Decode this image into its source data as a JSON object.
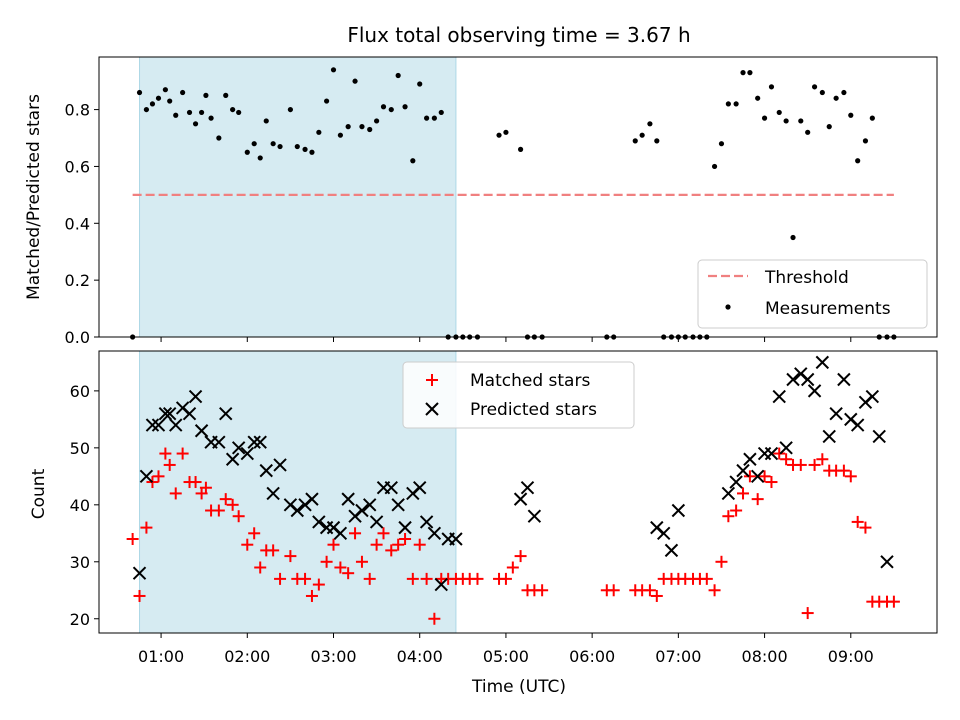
{
  "chart_data": {
    "type": "scatter",
    "title": "Flux total observing time = 3.67 h",
    "xlabel": "Time (UTC)",
    "x_tick_labels": [
      "01:00",
      "02:00",
      "03:00",
      "04:00",
      "05:00",
      "06:00",
      "07:00",
      "08:00",
      "09:00"
    ],
    "x_ticks": [
      1,
      2,
      3,
      4,
      5,
      6,
      7,
      8,
      9
    ],
    "xlim": [
      0.28,
      10.0
    ],
    "shaded_span": [
      0.75,
      4.42
    ],
    "colors": {
      "shade": "#add8e6",
      "threshold": "#f08080",
      "measurement": "#000000",
      "matched": "#ff0000",
      "predicted": "#000000"
    },
    "panels": [
      {
        "ylabel": "Matched/Predicted stars",
        "ylim": [
          0,
          0.985
        ],
        "y_ticks": [
          0.0,
          0.2,
          0.4,
          0.6,
          0.8
        ],
        "y_tick_labels": [
          "0.0",
          "0.2",
          "0.4",
          "0.6",
          "0.8"
        ],
        "legend_position": "lower-right",
        "series": [
          {
            "name": "Threshold",
            "style": "dashed-line",
            "x": [
              0.67,
              9.5
            ],
            "y": [
              0.5,
              0.5
            ]
          },
          {
            "name": "Measurements",
            "style": "dot",
            "x": [
              0.67,
              0.75,
              0.83,
              0.9,
              0.97,
              1.05,
              1.1,
              1.17,
              1.25,
              1.33,
              1.4,
              1.47,
              1.52,
              1.58,
              1.67,
              1.75,
              1.83,
              1.9,
              2.0,
              2.08,
              2.15,
              2.22,
              2.3,
              2.38,
              2.5,
              2.58,
              2.67,
              2.75,
              2.83,
              2.92,
              3.0,
              3.08,
              3.17,
              3.25,
              3.33,
              3.42,
              3.5,
              3.58,
              3.67,
              3.75,
              3.83,
              3.92,
              4.0,
              4.08,
              4.17,
              4.25,
              4.33,
              4.42,
              4.5,
              4.58,
              4.67,
              4.92,
              5.0,
              5.17,
              5.25,
              5.33,
              5.42,
              6.17,
              6.25,
              6.5,
              6.58,
              6.67,
              6.75,
              6.83,
              6.92,
              7.0,
              7.08,
              7.17,
              7.25,
              7.33,
              7.42,
              7.5,
              7.58,
              7.67,
              7.75,
              7.83,
              7.92,
              8.0,
              8.08,
              8.17,
              8.25,
              8.33,
              8.42,
              8.5,
              8.58,
              8.67,
              8.75,
              8.83,
              8.92,
              9.0,
              9.08,
              9.17,
              9.25,
              9.33,
              9.42,
              9.5
            ],
            "y": [
              0.0,
              0.86,
              0.8,
              0.82,
              0.84,
              0.87,
              0.83,
              0.78,
              0.86,
              0.79,
              0.75,
              0.79,
              0.85,
              0.77,
              0.7,
              0.85,
              0.8,
              0.79,
              0.65,
              0.68,
              0.63,
              0.76,
              0.68,
              0.67,
              0.8,
              0.67,
              0.66,
              0.65,
              0.72,
              0.83,
              0.94,
              0.71,
              0.74,
              0.9,
              0.74,
              0.73,
              0.76,
              0.81,
              0.8,
              0.92,
              0.81,
              0.62,
              0.89,
              0.77,
              0.77,
              0.79,
              0.0,
              0.0,
              0.0,
              0.0,
              0.0,
              0.71,
              0.72,
              0.66,
              0.0,
              0.0,
              0.0,
              0.0,
              0.0,
              0.69,
              0.71,
              0.75,
              0.69,
              0.0,
              0.0,
              0.0,
              0.0,
              0.0,
              0.0,
              0.0,
              0.6,
              0.68,
              0.82,
              0.82,
              0.93,
              0.93,
              0.84,
              0.77,
              0.88,
              0.79,
              0.76,
              0.35,
              0.76,
              0.72,
              0.88,
              0.86,
              0.74,
              0.84,
              0.86,
              0.78,
              0.62,
              0.69,
              0.77,
              0.0,
              0.0,
              0.0
            ]
          }
        ]
      },
      {
        "ylabel": "Count",
        "ylim": [
          17.5,
          67
        ],
        "y_ticks": [
          20,
          30,
          40,
          50,
          60
        ],
        "y_tick_labels": [
          "20",
          "30",
          "40",
          "50",
          "60"
        ],
        "legend_position": "top-center",
        "series": [
          {
            "name": "Matched stars",
            "style": "plus",
            "x": [
              0.67,
              0.75,
              0.83,
              0.9,
              0.97,
              1.05,
              1.1,
              1.17,
              1.25,
              1.33,
              1.4,
              1.47,
              1.52,
              1.58,
              1.67,
              1.75,
              1.83,
              1.9,
              2.0,
              2.08,
              2.15,
              2.22,
              2.3,
              2.38,
              2.5,
              2.58,
              2.67,
              2.75,
              2.83,
              2.92,
              3.0,
              3.08,
              3.17,
              3.25,
              3.33,
              3.42,
              3.5,
              3.58,
              3.67,
              3.75,
              3.83,
              3.92,
              4.0,
              4.08,
              4.17,
              4.25,
              4.33,
              4.42,
              4.5,
              4.58,
              4.67,
              4.92,
              5.0,
              5.08,
              5.17,
              5.25,
              5.33,
              5.42,
              6.17,
              6.25,
              6.5,
              6.58,
              6.67,
              6.75,
              6.83,
              6.92,
              7.0,
              7.08,
              7.17,
              7.25,
              7.33,
              7.42,
              7.5,
              7.58,
              7.67,
              7.75,
              7.83,
              7.92,
              8.0,
              8.08,
              8.17,
              8.25,
              8.33,
              8.42,
              8.5,
              8.58,
              8.67,
              8.75,
              8.83,
              8.92,
              9.0,
              9.08,
              9.17,
              9.25,
              9.33,
              9.42,
              9.5
            ],
            "y": [
              34,
              24,
              36,
              44,
              45,
              49,
              47,
              42,
              49,
              44,
              44,
              42,
              43,
              39,
              39,
              41,
              40,
              38,
              33,
              35,
              29,
              32,
              32,
              27,
              31,
              27,
              27,
              24,
              26,
              30,
              33,
              29,
              28,
              35,
              30,
              27,
              33,
              35,
              32,
              33,
              34,
              27,
              33,
              27,
              20,
              27,
              27,
              27,
              27,
              27,
              27,
              27,
              27,
              29,
              31,
              25,
              25,
              25,
              25,
              25,
              25,
              25,
              25,
              24,
              27,
              27,
              27,
              27,
              27,
              27,
              27,
              25,
              30,
              38,
              39,
              42,
              45,
              41,
              45,
              44,
              49,
              48,
              47,
              47,
              21,
              47,
              48,
              46,
              46,
              46,
              45,
              37,
              36,
              23,
              23,
              23,
              23
            ],
            "count": 97
          },
          {
            "name": "Predicted stars",
            "style": "x",
            "x": [
              0.75,
              0.83,
              0.9,
              0.97,
              1.05,
              1.1,
              1.17,
              1.25,
              1.33,
              1.4,
              1.47,
              1.58,
              1.67,
              1.75,
              1.83,
              1.9,
              2.0,
              2.08,
              2.15,
              2.22,
              2.3,
              2.38,
              2.5,
              2.58,
              2.67,
              2.75,
              2.83,
              2.92,
              3.0,
              3.08,
              3.17,
              3.25,
              3.33,
              3.42,
              3.5,
              3.58,
              3.67,
              3.75,
              3.83,
              3.92,
              4.0,
              4.08,
              4.17,
              4.25,
              4.33,
              4.42,
              5.17,
              5.25,
              5.33,
              6.75,
              6.83,
              6.92,
              7.0,
              7.58,
              7.67,
              7.75,
              7.83,
              7.92,
              8.0,
              8.08,
              8.17,
              8.25,
              8.33,
              8.42,
              8.5,
              8.58,
              8.67,
              8.75,
              8.83,
              8.92,
              9.0,
              9.08,
              9.17,
              9.25,
              9.33,
              9.42
            ],
            "y": [
              28,
              45,
              54,
              54,
              56,
              56,
              54,
              57,
              56,
              59,
              53,
              51,
              51,
              56,
              48,
              50,
              49,
              51,
              51,
              46,
              42,
              47,
              40,
              39,
              40,
              41,
              37,
              36,
              36,
              35,
              41,
              38,
              39,
              40,
              37,
              43,
              43,
              40,
              36,
              42,
              43,
              37,
              35,
              26,
              34,
              34,
              41,
              43,
              38,
              36,
              35,
              32,
              39,
              42,
              44,
              46,
              48,
              45,
              49,
              49,
              59,
              50,
              62,
              63,
              62,
              60,
              65,
              52,
              56,
              62,
              55,
              54,
              58,
              59,
              52,
              30
            ]
          }
        ]
      }
    ]
  }
}
